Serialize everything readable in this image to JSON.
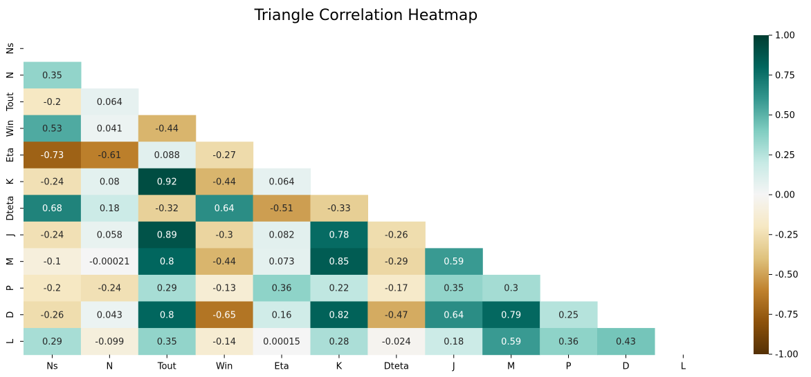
{
  "chart_data": {
    "type": "heatmap",
    "title": "Triangle Correlation Heatmap",
    "variables": [
      "Ns",
      "N",
      "Tout",
      "Win",
      "Eta",
      "K",
      "Dteta",
      "J",
      "M",
      "P",
      "D",
      "L"
    ],
    "mask": "upper-triangle-including-diagonal",
    "value_labels": [
      [],
      [
        "0.35"
      ],
      [
        "-0.2",
        "0.064"
      ],
      [
        "0.53",
        "0.041",
        "-0.44"
      ],
      [
        "-0.73",
        "-0.61",
        "0.088",
        "-0.27"
      ],
      [
        "-0.24",
        "0.08",
        "0.92",
        "-0.44",
        "0.064"
      ],
      [
        "0.68",
        "0.18",
        "-0.32",
        "0.64",
        "-0.51",
        "-0.33"
      ],
      [
        "-0.24",
        "0.058",
        "0.89",
        "-0.3",
        "0.082",
        "0.78",
        "-0.26"
      ],
      [
        "-0.1",
        "-0.00021",
        "0.8",
        "-0.44",
        "0.073",
        "0.85",
        "-0.29",
        "0.59"
      ],
      [
        "-0.2",
        "-0.24",
        "0.29",
        "-0.13",
        "0.36",
        "0.22",
        "-0.17",
        "0.35",
        "0.3"
      ],
      [
        "-0.26",
        "0.043",
        "0.8",
        "-0.65",
        "0.16",
        "0.82",
        "-0.47",
        "0.64",
        "0.79",
        "0.25"
      ],
      [
        "0.29",
        "-0.099",
        "0.35",
        "-0.14",
        "0.00015",
        "0.28",
        "-0.024",
        "0.18",
        "0.59",
        "0.36",
        "0.43"
      ]
    ],
    "colorbar": {
      "range": [
        -1,
        1
      ],
      "ticks": [
        "-1.00",
        "-0.75",
        "-0.50",
        "-0.25",
        "0.00",
        "0.25",
        "0.50",
        "0.75",
        "1.00"
      ],
      "colormap": "BrBG",
      "colors": [
        "#543005",
        "#8c510a",
        "#bf812d",
        "#dfc27d",
        "#f6e8c3",
        "#f5f5f5",
        "#c7eae5",
        "#80cdc1",
        "#35978f",
        "#01665e",
        "#003c30"
      ]
    }
  }
}
